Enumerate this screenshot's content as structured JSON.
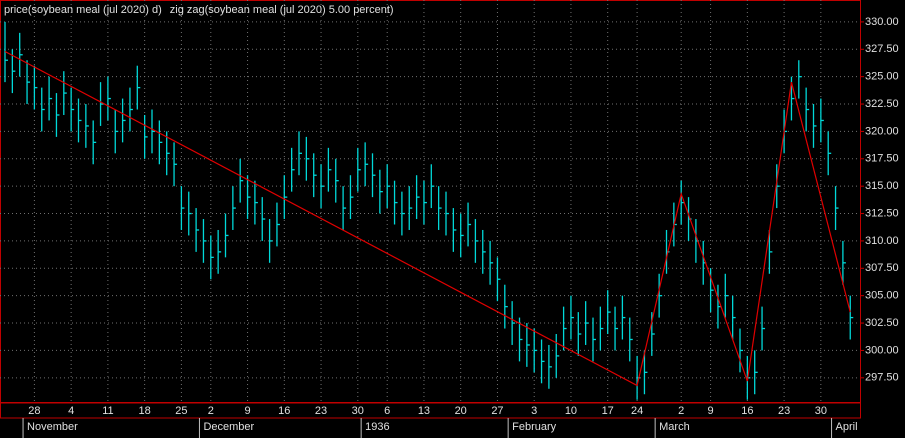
{
  "chart_data": {
    "type": "ohlc",
    "legend": [
      {
        "name": "price(soybean meal (jul 2020) d)",
        "color": "#00d8d8"
      },
      {
        "name": "zig zag(soybean meal (jul 2020) 5.00 percent)",
        "color": "#e00000"
      }
    ],
    "close": [
      326.5,
      325.5,
      327,
      324.5,
      324,
      322,
      323,
      321.5,
      323.5,
      322,
      321,
      320.5,
      319,
      322.5,
      323,
      320,
      321,
      322,
      324,
      319.5,
      320,
      319,
      318,
      317,
      313,
      312.5,
      311,
      310,
      308.5,
      309,
      310.5,
      313,
      315.5,
      314,
      313.5,
      312,
      310,
      311.5,
      314,
      316.5,
      318,
      317.5,
      316,
      315,
      316.5,
      315.5,
      313,
      314,
      316.5,
      317,
      316,
      314.5,
      315,
      313.5,
      312.5,
      313,
      314,
      313.5,
      315,
      313,
      312.5,
      311,
      310.5,
      311.5,
      310,
      309,
      308,
      306.5,
      304,
      302.5,
      301,
      300.5,
      300,
      299,
      298.5,
      299.5,
      302,
      303,
      301.5,
      302.5,
      301,
      302,
      303.5,
      302,
      303,
      301,
      297.5,
      298,
      301.5,
      305,
      309,
      311.5,
      313.5,
      312,
      310,
      308,
      305.5,
      304,
      305,
      303,
      300,
      297.5,
      298,
      302,
      309,
      315,
      320,
      323,
      325,
      322,
      320.5,
      321,
      318,
      313,
      308,
      303
    ],
    "high": [
      330,
      327.5,
      329,
      326.5,
      326,
      324,
      325,
      323.5,
      325.5,
      324,
      323,
      322.5,
      321,
      324.5,
      325,
      322,
      323,
      324,
      326,
      321.5,
      322,
      321,
      320,
      319,
      315,
      314.5,
      313,
      312,
      310.5,
      311,
      312.5,
      315,
      317.5,
      316,
      315.5,
      314,
      312,
      313.5,
      316,
      318.5,
      320,
      319.5,
      318,
      317,
      318.5,
      317.5,
      315,
      316,
      318.5,
      319,
      318,
      316.5,
      317,
      315.5,
      314.5,
      315,
      316,
      315.5,
      317,
      315,
      314.5,
      313,
      312.5,
      313.5,
      312,
      311,
      310,
      308.5,
      306,
      304.5,
      303,
      302.5,
      302,
      301,
      300.5,
      301.5,
      304,
      305,
      303.5,
      304.5,
      303,
      304,
      305.5,
      304,
      305,
      303,
      299.5,
      300,
      303.5,
      307,
      311,
      313.5,
      315.5,
      314,
      312,
      310,
      307.5,
      306,
      307,
      305,
      302,
      299.5,
      300,
      304,
      311,
      317,
      322,
      325,
      326.5,
      324,
      322.5,
      323,
      320,
      315,
      310,
      305
    ],
    "low": [
      324.5,
      323.5,
      325,
      322.5,
      322,
      320,
      321,
      319.5,
      321.5,
      320,
      319,
      318.5,
      317,
      320.5,
      321,
      318,
      319,
      320,
      322,
      317.5,
      318,
      317,
      316,
      315,
      311,
      310.5,
      309,
      308,
      306.5,
      307,
      308.5,
      311,
      313.5,
      312,
      311.5,
      310,
      308,
      309.5,
      312,
      314.5,
      316,
      315.5,
      314,
      313,
      314.5,
      313.5,
      311,
      312,
      314.5,
      315,
      314,
      312.5,
      313,
      311.5,
      310.5,
      311,
      312,
      311.5,
      313,
      311,
      310.5,
      309,
      308.5,
      309.5,
      308,
      307,
      306,
      304.5,
      302,
      300.5,
      299,
      298.5,
      298,
      297,
      296.5,
      297.5,
      300,
      301,
      299.5,
      300.5,
      299,
      300,
      301.5,
      300,
      301,
      299,
      295.5,
      296,
      299.5,
      303,
      307,
      309.5,
      311.5,
      310,
      308,
      306,
      303.5,
      302,
      303,
      301,
      298,
      295.5,
      296,
      300,
      307,
      313,
      318,
      321,
      323,
      320,
      318.5,
      319,
      316,
      311,
      306,
      301
    ],
    "zigzag": {
      "index": [
        0,
        86,
        92,
        101,
        107,
        115
      ],
      "values": [
        327.3,
        296.8,
        314.3,
        297.2,
        324.5,
        303.5
      ]
    },
    "date_labels": [
      {
        "index": 4,
        "label": "28"
      },
      {
        "index": 9,
        "label": "4"
      },
      {
        "index": 14,
        "label": "11"
      },
      {
        "index": 19,
        "label": "18"
      },
      {
        "index": 24,
        "label": "25"
      },
      {
        "index": 28,
        "label": "2"
      },
      {
        "index": 33,
        "label": "9"
      },
      {
        "index": 38,
        "label": "16"
      },
      {
        "index": 43,
        "label": "23"
      },
      {
        "index": 48,
        "label": "30"
      },
      {
        "index": 52,
        "label": "6"
      },
      {
        "index": 57,
        "label": "13"
      },
      {
        "index": 62,
        "label": "20"
      },
      {
        "index": 67,
        "label": "27"
      },
      {
        "index": 72,
        "label": "3"
      },
      {
        "index": 77,
        "label": "10"
      },
      {
        "index": 82,
        "label": "17"
      },
      {
        "index": 86,
        "label": "24"
      },
      {
        "index": 92,
        "label": "2"
      },
      {
        "index": 96,
        "label": "9"
      },
      {
        "index": 101,
        "label": "16"
      },
      {
        "index": 106,
        "label": "23"
      },
      {
        "index": 111,
        "label": "30"
      }
    ],
    "month_labels": [
      {
        "index": 3,
        "label": "November"
      },
      {
        "index": 27,
        "label": "December"
      },
      {
        "index": 49,
        "label": "1936"
      },
      {
        "index": 69,
        "label": "February"
      },
      {
        "index": 89,
        "label": "March"
      },
      {
        "index": 113,
        "label": "April"
      }
    ],
    "ylim": [
      295.2,
      332
    ],
    "yticks": [
      {
        "value": 297.5,
        "label": "297.50"
      },
      {
        "value": 300,
        "label": "300.00"
      },
      {
        "value": 302.5,
        "label": "302.50"
      },
      {
        "value": 305,
        "label": "305.00"
      },
      {
        "value": 307.5,
        "label": "307.50"
      },
      {
        "value": 310,
        "label": "310.00"
      },
      {
        "value": 312.5,
        "label": "312.50"
      },
      {
        "value": 315,
        "label": "315.00"
      },
      {
        "value": 317.5,
        "label": "317.50"
      },
      {
        "value": 320,
        "label": "320.00"
      },
      {
        "value": 322.5,
        "label": "322.50"
      },
      {
        "value": 325,
        "label": "325.00"
      },
      {
        "value": 327.5,
        "label": "327.50"
      },
      {
        "value": 330,
        "label": "330.00"
      }
    ],
    "grid": true
  }
}
